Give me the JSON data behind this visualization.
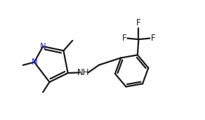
{
  "bg_color": "#ffffff",
  "line_color": "#1a1a1a",
  "nitrogen_color": "#3333cc",
  "bond_lw": 1.6,
  "font_size": 8.5,
  "xlim": [
    0,
    9
  ],
  "ylim": [
    0,
    5.5
  ],
  "figsize": [
    2.92,
    1.71
  ],
  "dpi": 100
}
